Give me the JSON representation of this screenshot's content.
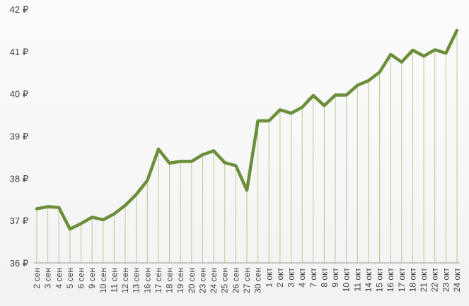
{
  "chart_data": {
    "type": "line",
    "title": "",
    "xlabel": "",
    "ylabel": "",
    "ylim": [
      36,
      42
    ],
    "yticks": [
      {
        "value": 36,
        "label": "36 ₽"
      },
      {
        "value": 37,
        "label": "37 ₽"
      },
      {
        "value": 38,
        "label": "38 ₽"
      },
      {
        "value": 39,
        "label": "39 ₽"
      },
      {
        "value": 40,
        "label": "40 ₽"
      },
      {
        "value": 41,
        "label": "41 ₽"
      },
      {
        "value": 42,
        "label": "42 ₽"
      }
    ],
    "grid": "vertical drop lines at each category",
    "line_color": "#6b8e3a",
    "drop_line_color": "#b7c98f",
    "categories": [
      "2 сен",
      "3 сен",
      "4 сен",
      "5 сен",
      "6 сен",
      "9 сен",
      "10 сен",
      "11 сен",
      "12 сен",
      "13 сен",
      "16 сен",
      "17 сен",
      "18 сен",
      "19 сен",
      "20 сен",
      "23 сен",
      "24 сен",
      "25 сен",
      "26 сен",
      "27 сен",
      "30 сен",
      "1 окт",
      "2 окт",
      "3 окт",
      "4 окт",
      "7 окт",
      "8 окт",
      "9 окт",
      "10 окт",
      "11 окт",
      "14 окт",
      "15 окт",
      "16 окт",
      "17 окт",
      "18 окт",
      "21 окт",
      "22 окт",
      "23 окт",
      "24 окт"
    ],
    "series": [
      {
        "values": [
          37.28,
          37.33,
          37.31,
          36.8,
          36.93,
          37.08,
          37.02,
          37.16,
          37.36,
          37.62,
          37.95,
          38.69,
          38.36,
          38.4,
          38.4,
          38.56,
          38.65,
          38.37,
          38.3,
          37.72,
          39.36,
          39.36,
          39.62,
          39.54,
          39.68,
          39.96,
          39.72,
          39.97,
          39.97,
          40.2,
          40.31,
          40.51,
          40.93,
          40.75,
          41.03,
          40.89,
          41.04,
          40.96,
          41.5
        ]
      }
    ]
  }
}
